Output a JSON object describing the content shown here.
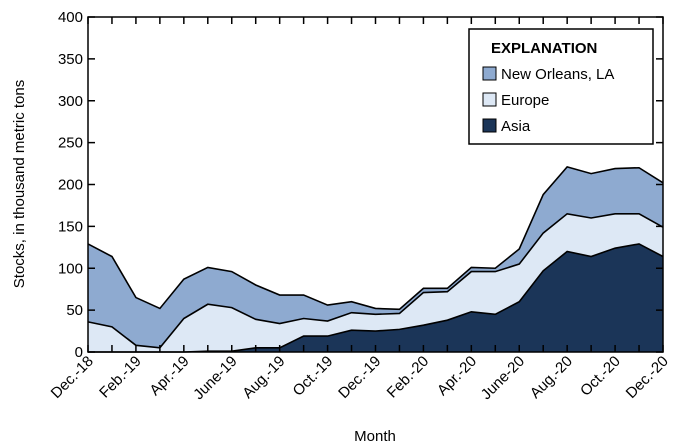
{
  "chart_data": {
    "type": "area",
    "stacked": true,
    "xlabel": "Month",
    "ylabel": "Stocks, in thousand metric tons",
    "ylim": [
      0,
      400
    ],
    "yticks": [
      0,
      50,
      100,
      150,
      200,
      250,
      300,
      350,
      400
    ],
    "x_tick_labels": [
      "Dec.-18",
      "Feb.-19",
      "Apr.-19",
      "June-19",
      "Aug.-19",
      "Oct.-19",
      "Dec.-19",
      "Feb.-20",
      "Apr.-20",
      "June-20",
      "Aug.-20",
      "Oct.-20",
      "Dec.-20"
    ],
    "grid": false,
    "legend": {
      "title": "EXPLANATION",
      "placement": "top-right",
      "entries": [
        "New Orleans, LA",
        "Europe",
        "Asia"
      ]
    },
    "series": [
      {
        "name": "Asia",
        "color": "#1b3558",
        "values": [
          0,
          0,
          0,
          0,
          0,
          1,
          1,
          5,
          5,
          19,
          19,
          26,
          25,
          27,
          32,
          38,
          48,
          45,
          60,
          97,
          120,
          114,
          124,
          129,
          114
        ]
      },
      {
        "name": "Europe",
        "color": "#dde8f5",
        "values": [
          36,
          30,
          8,
          5,
          40,
          56,
          52,
          34,
          29,
          21,
          18,
          21,
          20,
          19,
          39,
          34,
          48,
          51,
          45,
          45,
          45,
          46,
          41,
          36,
          35
        ]
      },
      {
        "name": "New Orleans, LA",
        "color": "#8eaad0",
        "values": [
          93,
          84,
          57,
          47,
          47,
          44,
          43,
          41,
          34,
          28,
          19,
          13,
          7,
          5,
          5,
          4,
          5,
          4,
          18,
          46,
          56,
          53,
          54,
          55,
          53
        ]
      }
    ]
  }
}
